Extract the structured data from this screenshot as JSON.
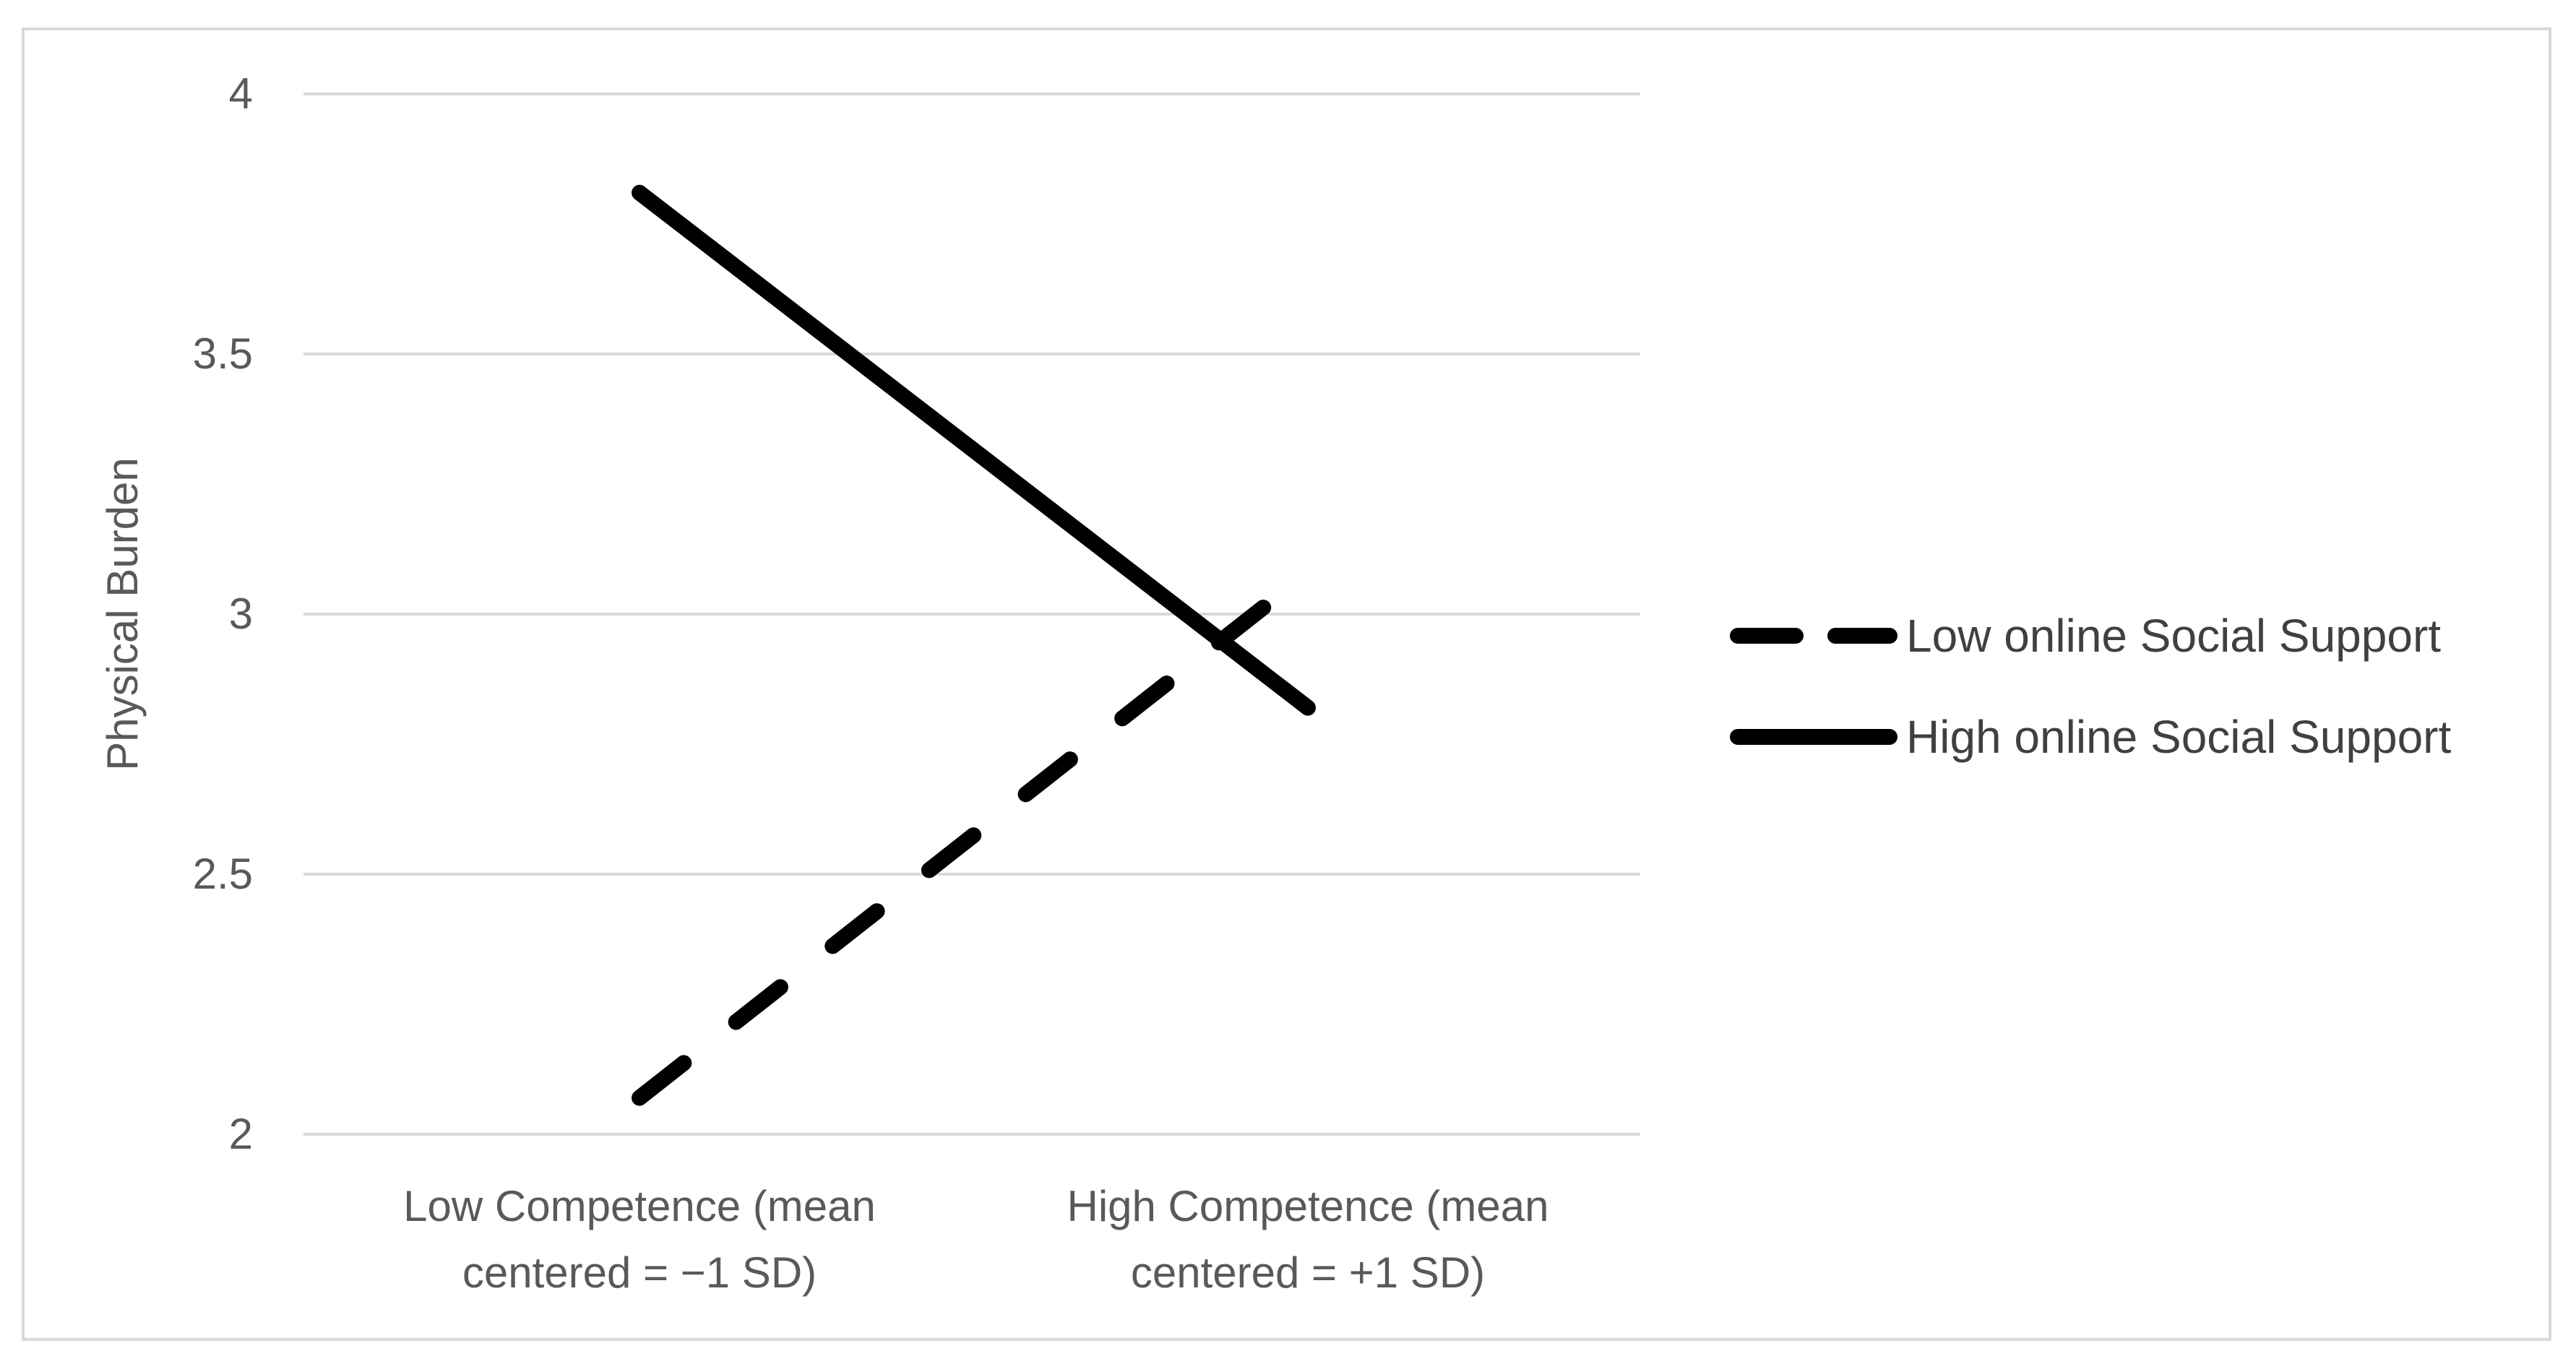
{
  "chart_data": {
    "type": "line",
    "title": "",
    "xlabel": "",
    "ylabel": "Physical Burden",
    "categories": [
      [
        "Low Competence (mean",
        "centered = −1 SD)"
      ],
      [
        "High Competence (mean",
        "centered = +1 SD)"
      ]
    ],
    "ylim": [
      2,
      4
    ],
    "yticks": [
      2,
      2.5,
      3,
      3.5,
      4
    ],
    "ytick_labels": [
      "2",
      "2.5",
      "3",
      "3.5",
      "4"
    ],
    "grid": true,
    "legend_position": "right",
    "series": [
      {
        "name": "Low online Social Support",
        "style": "dashed",
        "color": "#000000",
        "values": [
          2.07,
          3.08
        ]
      },
      {
        "name": "High online Social Support",
        "style": "solid",
        "color": "#000000",
        "values": [
          3.81,
          2.82
        ]
      }
    ]
  }
}
